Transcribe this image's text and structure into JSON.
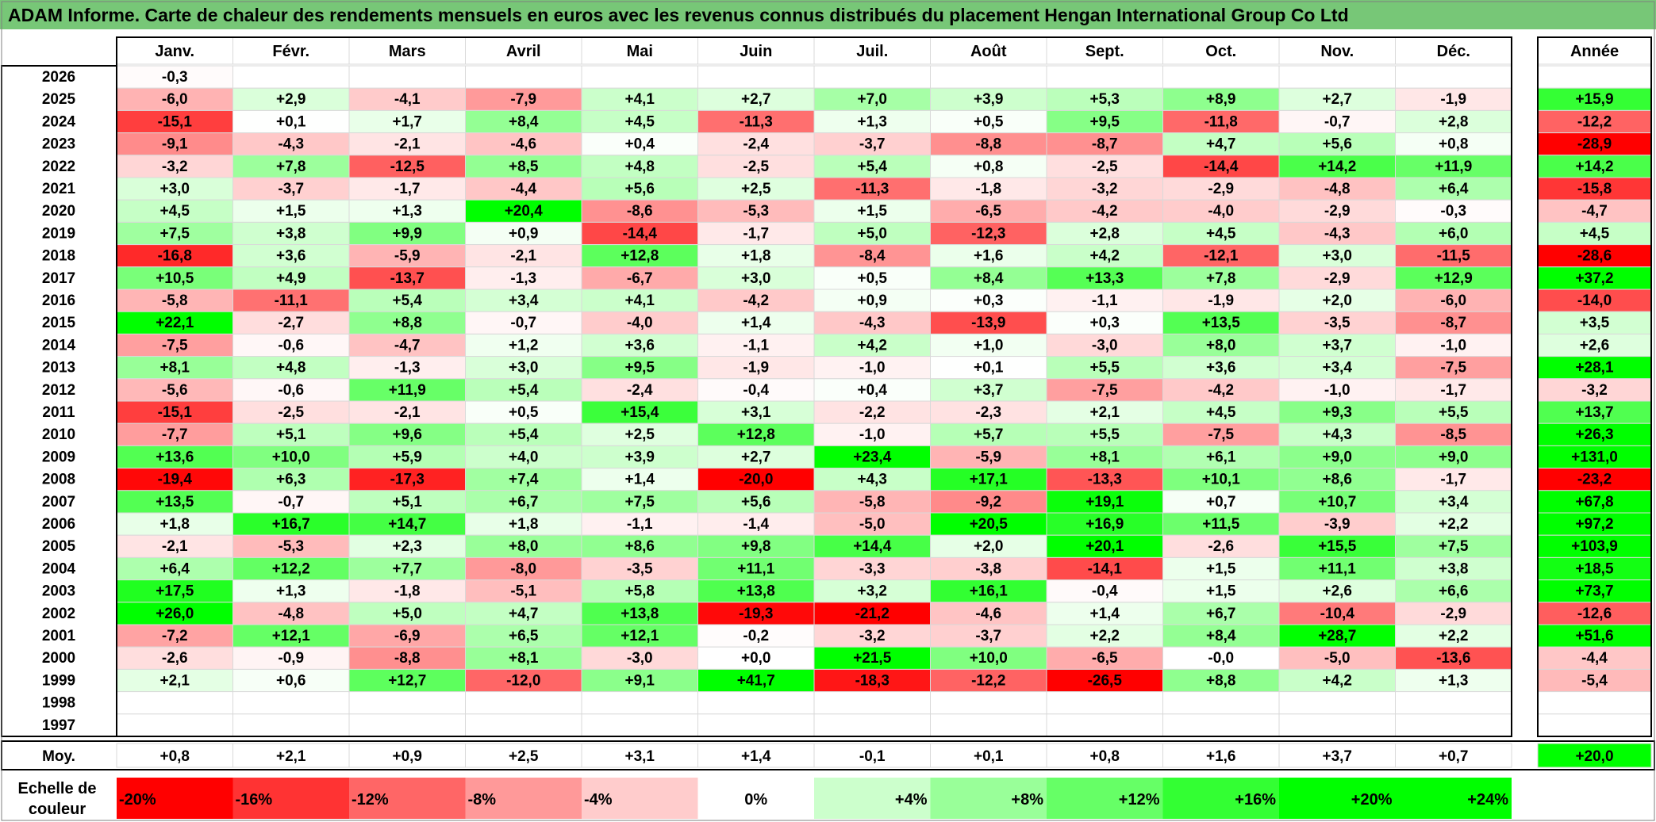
{
  "chart_data": {
    "type": "heatmap",
    "title": "ADAM Informe. Carte de chaleur des rendements mensuels en euros avec les revenus connus distribués du placement Hengan International Group Co Ltd",
    "months": [
      "Janv.",
      "Févr.",
      "Mars",
      "Avril",
      "Mai",
      "Juin",
      "Juil.",
      "Août",
      "Sept.",
      "Oct.",
      "Nov.",
      "Déc."
    ],
    "year_label": "Année",
    "avg_label": "Moy.",
    "rows": [
      {
        "year": "2026",
        "m": [
          "-0,3",
          "",
          "",
          "",
          "",
          "",
          "",
          "",
          "",
          "",
          "",
          ""
        ],
        "y": ""
      },
      {
        "year": "2025",
        "m": [
          "-6,0",
          "+2,9",
          "-4,1",
          "-7,9",
          "+4,1",
          "+2,7",
          "+7,0",
          "+3,9",
          "+5,3",
          "+8,9",
          "+2,7",
          "-1,9"
        ],
        "y": "+15,9"
      },
      {
        "year": "2024",
        "m": [
          "-15,1",
          "+0,1",
          "+1,7",
          "+8,4",
          "+4,5",
          "-11,3",
          "+1,3",
          "+0,5",
          "+9,5",
          "-11,8",
          "-0,7",
          "+2,8"
        ],
        "y": "-12,2"
      },
      {
        "year": "2023",
        "m": [
          "-9,1",
          "-4,3",
          "-2,1",
          "-4,6",
          "+0,4",
          "-2,4",
          "-3,7",
          "-8,8",
          "-8,7",
          "+4,7",
          "+5,6",
          "+0,8"
        ],
        "y": "-28,9"
      },
      {
        "year": "2022",
        "m": [
          "-3,2",
          "+7,8",
          "-12,5",
          "+8,5",
          "+4,8",
          "-2,5",
          "+5,4",
          "+0,8",
          "-2,5",
          "-14,4",
          "+14,2",
          "+11,9"
        ],
        "y": "+14,2"
      },
      {
        "year": "2021",
        "m": [
          "+3,0",
          "-3,7",
          "-1,7",
          "-4,4",
          "+5,6",
          "+2,5",
          "-11,3",
          "-1,8",
          "-3,2",
          "-2,9",
          "-4,8",
          "+6,4"
        ],
        "y": "-15,8"
      },
      {
        "year": "2020",
        "m": [
          "+4,5",
          "+1,5",
          "+1,3",
          "+20,4",
          "-8,6",
          "-5,3",
          "+1,5",
          "-6,5",
          "-4,2",
          "-4,0",
          "-2,9",
          "-0,3"
        ],
        "y": "-4,7"
      },
      {
        "year": "2019",
        "m": [
          "+7,5",
          "+3,8",
          "+9,9",
          "+0,9",
          "-14,4",
          "-1,7",
          "+5,0",
          "-12,3",
          "+2,8",
          "+4,5",
          "-4,3",
          "+6,0"
        ],
        "y": "+4,5"
      },
      {
        "year": "2018",
        "m": [
          "-16,8",
          "+3,6",
          "-5,9",
          "-2,1",
          "+12,8",
          "+1,8",
          "-8,4",
          "+1,6",
          "+4,2",
          "-12,1",
          "+3,0",
          "-11,5"
        ],
        "y": "-28,6"
      },
      {
        "year": "2017",
        "m": [
          "+10,5",
          "+4,9",
          "-13,7",
          "-1,3",
          "-6,7",
          "+3,0",
          "+0,5",
          "+8,4",
          "+13,3",
          "+7,8",
          "-2,9",
          "+12,9"
        ],
        "y": "+37,2"
      },
      {
        "year": "2016",
        "m": [
          "-5,8",
          "-11,1",
          "+5,4",
          "+3,4",
          "+4,1",
          "-4,2",
          "+0,9",
          "+0,3",
          "-1,1",
          "-1,9",
          "+2,0",
          "-6,0"
        ],
        "y": "-14,0"
      },
      {
        "year": "2015",
        "m": [
          "+22,1",
          "-2,7",
          "+8,8",
          "-0,7",
          "-4,0",
          "+1,4",
          "-4,3",
          "-13,9",
          "+0,3",
          "+13,5",
          "-3,5",
          "-8,7"
        ],
        "y": "+3,5"
      },
      {
        "year": "2014",
        "m": [
          "-7,5",
          "-0,6",
          "-4,7",
          "+1,2",
          "+3,6",
          "-1,1",
          "+4,2",
          "+1,0",
          "-3,0",
          "+8,0",
          "+3,7",
          "-1,0"
        ],
        "y": "+2,6"
      },
      {
        "year": "2013",
        "m": [
          "+8,1",
          "+4,8",
          "-1,3",
          "+3,0",
          "+9,5",
          "-1,9",
          "-1,0",
          "+0,1",
          "+5,5",
          "+3,6",
          "+3,4",
          "-7,5"
        ],
        "y": "+28,1"
      },
      {
        "year": "2012",
        "m": [
          "-5,6",
          "-0,6",
          "+11,9",
          "+5,4",
          "-2,4",
          "-0,4",
          "+0,4",
          "+3,7",
          "-7,5",
          "-4,2",
          "-1,0",
          "-1,7"
        ],
        "y": "-3,2"
      },
      {
        "year": "2011",
        "m": [
          "-15,1",
          "-2,5",
          "-2,1",
          "+0,5",
          "+15,4",
          "+3,1",
          "-2,2",
          "-2,3",
          "+2,1",
          "+4,5",
          "+9,3",
          "+5,5"
        ],
        "y": "+13,7"
      },
      {
        "year": "2010",
        "m": [
          "-7,7",
          "+5,1",
          "+9,6",
          "+5,4",
          "+2,5",
          "+12,8",
          "-1,0",
          "+5,7",
          "+5,5",
          "-7,5",
          "+4,3",
          "-8,5"
        ],
        "y": "+26,3"
      },
      {
        "year": "2009",
        "m": [
          "+13,6",
          "+10,0",
          "+5,9",
          "+4,0",
          "+3,9",
          "+2,7",
          "+23,4",
          "-5,9",
          "+8,1",
          "+6,1",
          "+9,0",
          "+9,0"
        ],
        "y": "+131,0"
      },
      {
        "year": "2008",
        "m": [
          "-19,4",
          "+6,3",
          "-17,3",
          "+7,4",
          "+1,4",
          "-20,0",
          "+4,3",
          "+17,1",
          "-13,3",
          "+10,1",
          "+8,6",
          "-1,7"
        ],
        "y": "-23,2"
      },
      {
        "year": "2007",
        "m": [
          "+13,5",
          "-0,7",
          "+5,1",
          "+6,7",
          "+7,5",
          "+5,6",
          "-5,8",
          "-9,2",
          "+19,1",
          "+0,7",
          "+10,7",
          "+3,4"
        ],
        "y": "+67,8"
      },
      {
        "year": "2006",
        "m": [
          "+1,8",
          "+16,7",
          "+14,7",
          "+1,8",
          "-1,1",
          "-1,4",
          "-5,0",
          "+20,5",
          "+16,9",
          "+11,5",
          "-3,9",
          "+2,2"
        ],
        "y": "+97,2"
      },
      {
        "year": "2005",
        "m": [
          "-2,1",
          "-5,3",
          "+2,3",
          "+8,0",
          "+8,6",
          "+9,8",
          "+14,4",
          "+2,0",
          "+20,1",
          "-2,6",
          "+15,5",
          "+7,5"
        ],
        "y": "+103,9"
      },
      {
        "year": "2004",
        "m": [
          "+6,4",
          "+12,2",
          "+7,7",
          "-8,0",
          "-3,5",
          "+11,1",
          "-3,3",
          "-3,8",
          "-14,1",
          "+1,5",
          "+11,1",
          "+3,8"
        ],
        "y": "+18,5"
      },
      {
        "year": "2003",
        "m": [
          "+17,5",
          "+1,3",
          "-1,8",
          "-5,1",
          "+5,8",
          "+13,8",
          "+3,2",
          "+16,1",
          "-0,4",
          "+1,5",
          "+2,6",
          "+6,6"
        ],
        "y": "+73,7"
      },
      {
        "year": "2002",
        "m": [
          "+26,0",
          "-4,8",
          "+5,0",
          "+4,7",
          "+13,8",
          "-19,3",
          "-21,2",
          "-4,6",
          "+1,4",
          "+6,7",
          "-10,4",
          "-2,9"
        ],
        "y": "-12,6"
      },
      {
        "year": "2001",
        "m": [
          "-7,2",
          "+12,1",
          "-6,9",
          "+6,5",
          "+12,1",
          "-0,2",
          "-3,2",
          "-3,7",
          "+2,2",
          "+8,4",
          "+28,7",
          "+2,2"
        ],
        "y": "+51,6"
      },
      {
        "year": "2000",
        "m": [
          "-2,6",
          "-0,9",
          "-8,8",
          "+8,1",
          "-3,0",
          "+0,0",
          "+21,5",
          "+10,0",
          "-6,5",
          "-0,0",
          "-5,0",
          "-13,6"
        ],
        "y": "-4,4"
      },
      {
        "year": "1999",
        "m": [
          "+2,1",
          "+0,6",
          "+12,7",
          "-12,0",
          "+9,1",
          "+41,7",
          "-18,3",
          "-12,2",
          "-26,5",
          "+8,8",
          "+4,2",
          "+1,3"
        ],
        "y": "-5,4"
      },
      {
        "year": "1998",
        "m": [
          "",
          "",
          "",
          "",
          "",
          "",
          "",
          "",
          "",
          "",
          "",
          ""
        ],
        "y": ""
      },
      {
        "year": "1997",
        "m": [
          "",
          "",
          "",
          "",
          "",
          "",
          "",
          "",
          "",
          "",
          "",
          ""
        ],
        "y": ""
      }
    ],
    "averages": {
      "m": [
        "+0,8",
        "+2,1",
        "+0,9",
        "+2,5",
        "+3,1",
        "+1,4",
        "-0,1",
        "+0,1",
        "+0,8",
        "+1,6",
        "+3,7",
        "+0,7"
      ],
      "y": "+20,0"
    },
    "scale": {
      "label_line1": "Echelle de",
      "label_line2": "couleur",
      "stops": [
        {
          "label": "-20%",
          "value": -20
        },
        {
          "label": "-16%",
          "value": -16
        },
        {
          "label": "-12%",
          "value": -12
        },
        {
          "label": "-8%",
          "value": -8
        },
        {
          "label": "-4%",
          "value": -4
        },
        {
          "label": "0%",
          "value": 0
        },
        {
          "label": "+4%",
          "value": 4
        },
        {
          "label": "+8%",
          "value": 8
        },
        {
          "label": "+12%",
          "value": 12
        },
        {
          "label": "+16%",
          "value": 16
        },
        {
          "label": "+20%",
          "value": 20
        },
        {
          "label": "+24%",
          "value": 24
        }
      ]
    },
    "colors": {
      "title_bg": "#77c777",
      "negative_max": "#ff0000",
      "positive_max": "#00ff00",
      "neutral": "#ffffff",
      "grid": "#d9d9d9",
      "border": "#000000"
    }
  }
}
